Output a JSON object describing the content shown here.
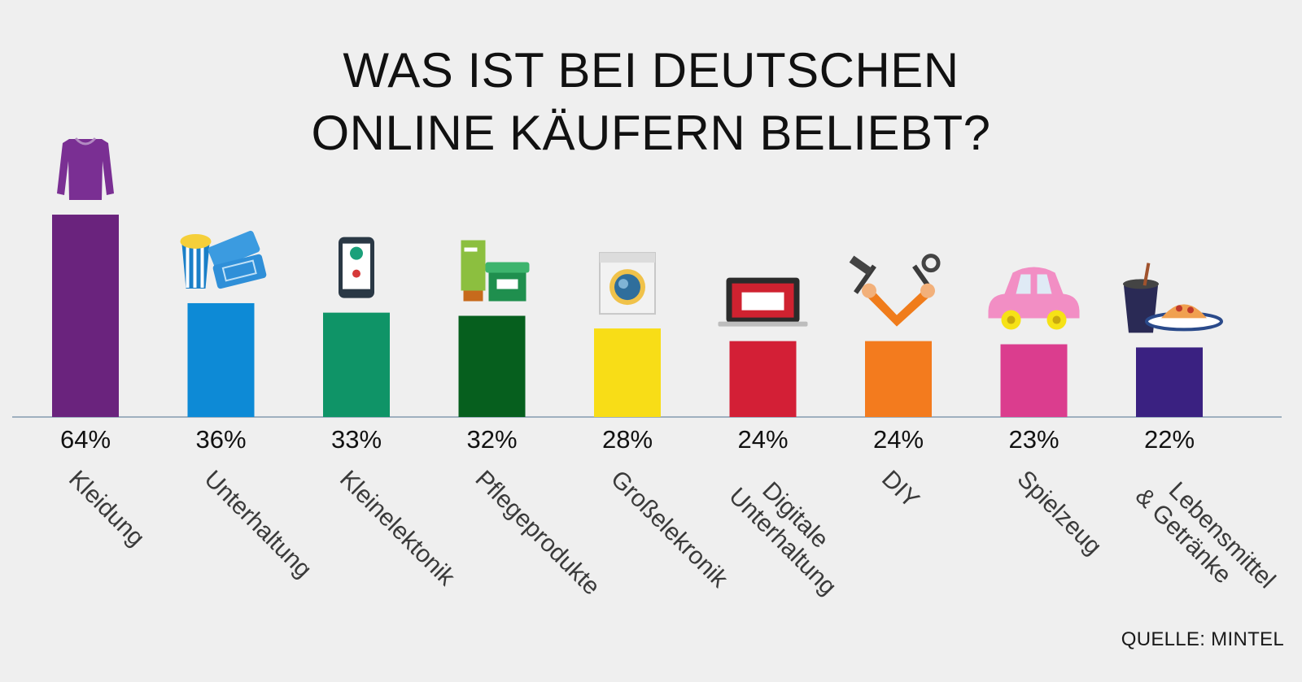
{
  "chart_data": {
    "type": "bar",
    "title_lines": [
      "WAS IST BEI DEUTSCHEN",
      "ONLINE KÄUFERN BELIEBT?"
    ],
    "categories": [
      [
        "Kleidung"
      ],
      [
        "Unterhaltung"
      ],
      [
        "Kleinelektonik"
      ],
      [
        "Pflegeprodukte"
      ],
      [
        "Großelekronik"
      ],
      [
        "Digitale",
        "Unterhaltung"
      ],
      [
        "DIY"
      ],
      [
        "Spielzeug"
      ],
      [
        "Lebensmittel",
        "& Getränke"
      ]
    ],
    "values": [
      64,
      36,
      33,
      32,
      28,
      24,
      24,
      23,
      22
    ],
    "value_labels": [
      "64%",
      "36%",
      "33%",
      "32%",
      "28%",
      "24%",
      "24%",
      "23%",
      "22%"
    ],
    "colors": [
      "#6a237d",
      "#0d8ad6",
      "#0f9467",
      "#065f1e",
      "#f8dd17",
      "#d31f36",
      "#f37b1e",
      "#db3d8e",
      "#3a2181"
    ],
    "icons": [
      "shirt-icon",
      "cinema-tickets-icon",
      "smartphone-icon",
      "cosmetics-icon",
      "washing-machine-icon",
      "laptop-icon",
      "tools-icon",
      "toy-car-icon",
      "food-drink-icon"
    ],
    "ylim": [
      0,
      100
    ],
    "grid": false,
    "legend": "none",
    "source": "QUELLE: MINTEL"
  }
}
